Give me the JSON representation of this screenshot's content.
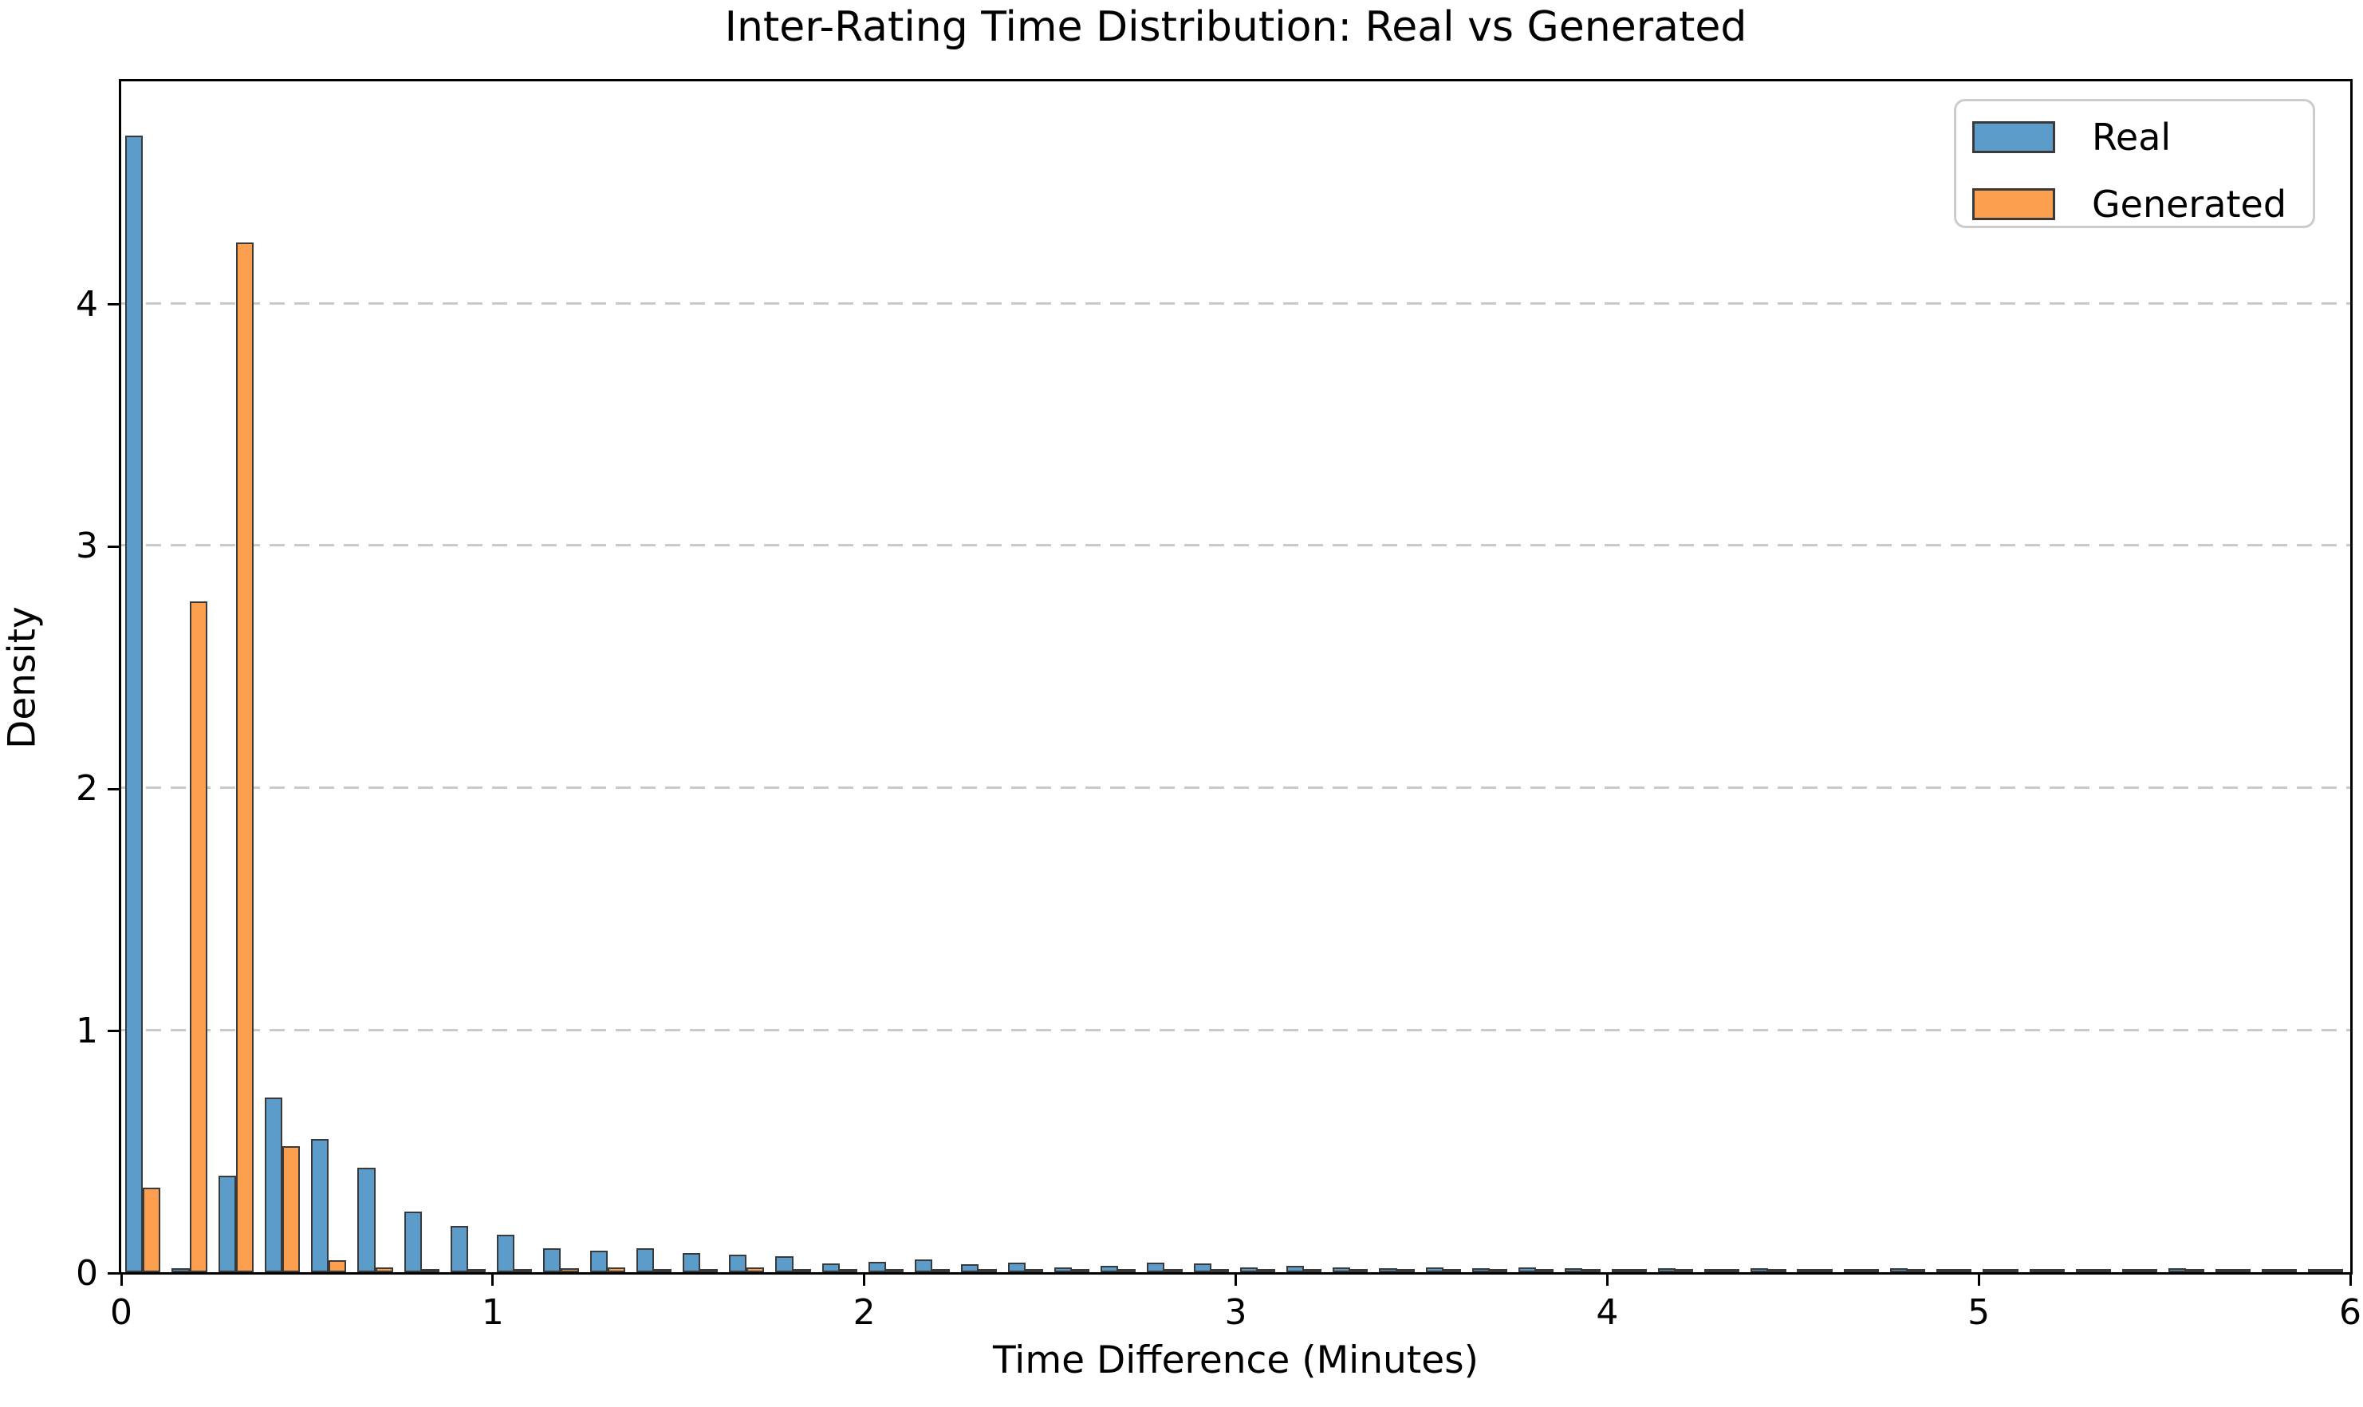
{
  "figure": {
    "background": "#ffffff"
  },
  "chart_data": {
    "type": "bar",
    "subtype": "histogram_density_grouped",
    "title": "Inter-Rating Time Distribution: Real vs Generated",
    "xlabel": "Time Difference (Minutes)",
    "ylabel": "Density",
    "xlim": [
      0,
      6
    ],
    "ylim": [
      0,
      4.92
    ],
    "xticks": [
      0,
      1,
      2,
      3,
      4,
      5,
      6
    ],
    "yticks": [
      0,
      1,
      2,
      3,
      4
    ],
    "grid": "horizontal-dashed-at-y-1-2-3-4",
    "legend_position": "upper-right",
    "bin_start": 0,
    "bin_width": 0.125,
    "n_bins": 48,
    "series": [
      {
        "name": "Real",
        "color": "#5b9cca",
        "edge_color": "#3a3a3a",
        "values": [
          4.69,
          0.015,
          0.4,
          0.72,
          0.55,
          0.43,
          0.25,
          0.19,
          0.155,
          0.1,
          0.09,
          0.1,
          0.08,
          0.072,
          0.066,
          0.036,
          0.042,
          0.052,
          0.034,
          0.039,
          0.021,
          0.026,
          0.039,
          0.037,
          0.021,
          0.026,
          0.02,
          0.015,
          0.02,
          0.015,
          0.02,
          0.015,
          0.012,
          0.015,
          0.012,
          0.015,
          0.01,
          0.012,
          0.015,
          0.01,
          0.012,
          0.012,
          0.01,
          0.012,
          0.015,
          0.01,
          0.012,
          0.01
        ]
      },
      {
        "name": "Generated",
        "color": "#fca04f",
        "edge_color": "#3a3a3a",
        "values": [
          0.35,
          2.77,
          4.25,
          0.52,
          0.05,
          0.02,
          0.012,
          0.012,
          0.01,
          0.015,
          0.02,
          0.01,
          0.012,
          0.02,
          0.01,
          0.01,
          0.012,
          0.01,
          0.012,
          0.01,
          0.01,
          0.01,
          0.012,
          0.01,
          0.01,
          0.01,
          0.01,
          0.01,
          0.01,
          0.01,
          0.01,
          0.01,
          0.01,
          0.01,
          0.01,
          0.01,
          0.01,
          0.01,
          0.01,
          0.01,
          0.01,
          0.01,
          0.01,
          0.01,
          0.01,
          0.01,
          0.01,
          0.01
        ]
      }
    ]
  },
  "legend": {
    "items": [
      {
        "label": "Real",
        "color": "#5b9cca"
      },
      {
        "label": "Generated",
        "color": "#fca04f"
      }
    ]
  },
  "colors": {
    "real_fill": "#5b9cca",
    "generated_fill": "#fca04f",
    "bar_edge": "#3a3a3a",
    "gridline": "#c9c9c9",
    "spine": "#000000",
    "legend_border": "#cccccc",
    "text": "#000000"
  }
}
